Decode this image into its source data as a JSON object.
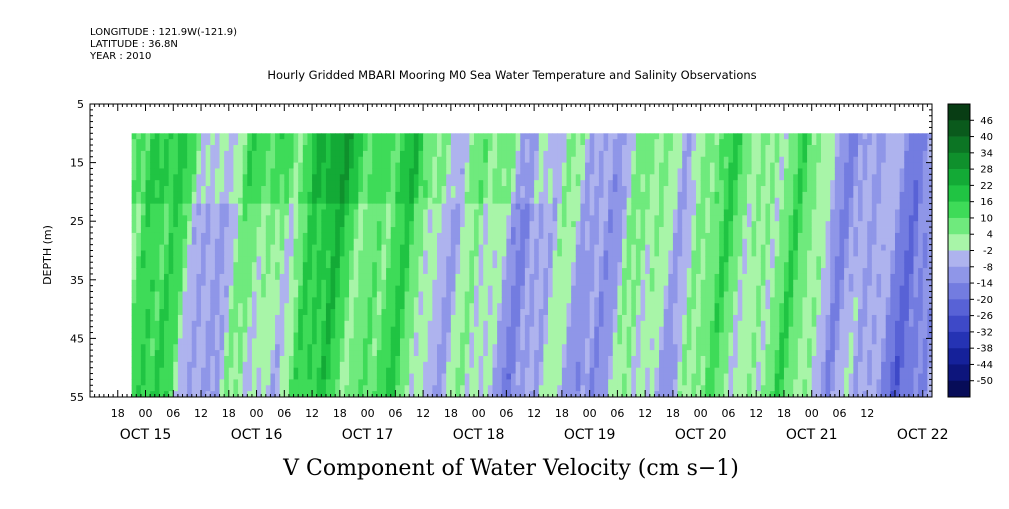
{
  "header": {
    "longitude": "LONGITUDE : 121.9W(-121.9)",
    "latitude": "LATITUDE : 36.8N",
    "year": "YEAR : 2010"
  },
  "chart_title": "Hourly Gridded MBARI Mooring M0 Sea Water Temperature and Salinity Observations",
  "bottom_title": "V Component of Water Velocity (cm s−1)",
  "chart_data": {
    "type": "heatmap",
    "title": "Hourly Gridded MBARI Mooring M0 Sea Water Temperature and Salinity Observations",
    "variable": "V Component of Water Velocity (cm s−1)",
    "ylabel": "DEPTH (m)",
    "ylim": [
      55,
      5
    ],
    "y_ticks": [
      5,
      15,
      25,
      35,
      45,
      55
    ],
    "data_depth_range": [
      10,
      55
    ],
    "x_hour_ticks": [
      "18",
      "00",
      "06",
      "12",
      "18",
      "00",
      "06",
      "12",
      "18",
      "00",
      "06",
      "12",
      "18",
      "00",
      "06",
      "12",
      "18",
      "00",
      "06",
      "12",
      "18",
      "00",
      "06",
      "12",
      "18",
      "00",
      "06",
      "12"
    ],
    "x_day_labels": [
      "OCT 15",
      "OCT 16",
      "OCT 17",
      "OCT 18",
      "OCT 19",
      "OCT 20",
      "OCT 21",
      "OCT 22"
    ],
    "time_range_hours_from_oct15_12": [
      0,
      182
    ],
    "data_time_start_hours": 9,
    "colorbar_levels": [
      "46",
      "40",
      "34",
      "28",
      "22",
      "16",
      "10",
      "4",
      "-2",
      "-8",
      "-14",
      "-20",
      "-26",
      "-32",
      "-38",
      "-44",
      "-50"
    ],
    "colorbar_colors": [
      "#083d14",
      "#0a5a1c",
      "#0c7524",
      "#0f902c",
      "#13aa36",
      "#20c443",
      "#3edb58",
      "#6fea7d",
      "#a8f5a8",
      "#aeb3ee",
      "#8f96e8",
      "#737ce0",
      "#5862d6",
      "#3e49c8",
      "#2533b4",
      "#15219a",
      "#0d157c",
      "#070c58"
    ],
    "colormap": "green (positive) to blue (negative)",
    "value_range_shown": [
      -14,
      22
    ],
    "dominant_pattern": "positive (green) velocities through Oct 18 with negative (blue) bands after Oct 19"
  }
}
